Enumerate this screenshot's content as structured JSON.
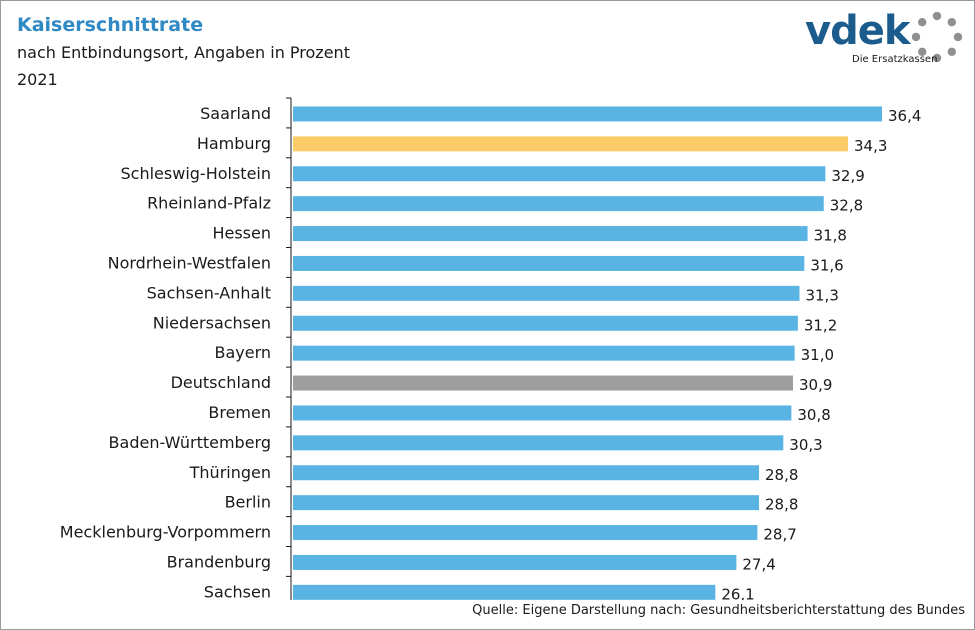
{
  "header": {
    "title": "Kaiserschnittrate",
    "subtitle": "nach Entbindungsort, Angaben in Prozent",
    "year": "2021"
  },
  "logo": {
    "word": "vdek",
    "tagline": "Die Ersatzkassen",
    "icon": "dotted-ring-logo-icon"
  },
  "footer": {
    "source": "Quelle: Eigene Darstellung nach: Gesundheitsberichterstattung  des Bundes"
  },
  "colors": {
    "default_bar": "#5ab4e3",
    "highlight_bar": "#fbcb67",
    "national_bar": "#9e9e9e",
    "title": "#2f89c4",
    "logo": "#1b5c8c"
  },
  "chart_data": {
    "type": "bar",
    "orientation": "horizontal",
    "categories": [
      "Saarland",
      "Hamburg",
      "Schleswig-Holstein",
      "Rheinland-Pfalz",
      "Hessen",
      "Nordrhein-Westfalen",
      "Sachsen-Anhalt",
      "Niedersachsen",
      "Bayern",
      "Deutschland",
      "Bremen",
      "Baden-Württemberg",
      "Thüringen",
      "Berlin",
      "Mecklenburg-Vorpommern",
      "Brandenburg",
      "Sachsen"
    ],
    "values": [
      36.4,
      34.3,
      32.9,
      32.8,
      31.8,
      31.6,
      31.3,
      31.2,
      31.0,
      30.9,
      30.8,
      30.3,
      28.8,
      28.8,
      28.7,
      27.4,
      26.1
    ],
    "value_labels": [
      "36,4",
      "34,3",
      "32,9",
      "32,8",
      "31,8",
      "31,6",
      "31,3",
      "31,2",
      "31,0",
      "30,9",
      "30,8",
      "30,3",
      "28,8",
      "28,8",
      "28,7",
      "27,4",
      "26,1"
    ],
    "highlight": {
      "Hamburg": "highlight_bar",
      "Deutschland": "national_bar"
    },
    "xlim": [
      0,
      36.4
    ],
    "grid": false,
    "legend": "none"
  }
}
